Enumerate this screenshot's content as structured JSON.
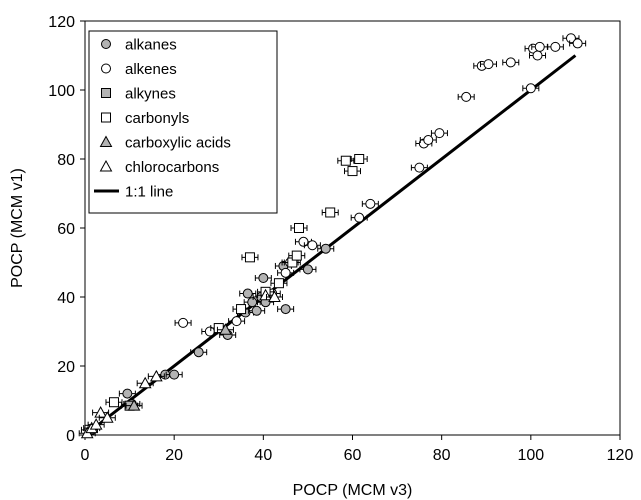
{
  "chart_data": {
    "type": "scatter",
    "xlabel": "POCP (MCM v3)",
    "ylabel": "POCP (MCM v1)",
    "xlim": [
      0,
      120
    ],
    "ylim": [
      0,
      120
    ],
    "x_ticks": [
      "0",
      "20",
      "40",
      "60",
      "80",
      "100",
      "120"
    ],
    "y_ticks": [
      "0",
      "20",
      "40",
      "60",
      "80",
      "100",
      "120"
    ],
    "grid": false,
    "legend_position": "top-left",
    "reference_line": {
      "name": "1:1 line",
      "x": [
        0,
        110
      ],
      "y": [
        0,
        110
      ]
    },
    "series": [
      {
        "name": "alkanes",
        "marker": "circle",
        "fill": "#b3b3b3",
        "points": [
          [
            9.5,
            12
          ],
          [
            10.5,
            9
          ],
          [
            18,
            17.5
          ],
          [
            20,
            17.5
          ],
          [
            25.5,
            24
          ],
          [
            32,
            29
          ],
          [
            36,
            35.5
          ],
          [
            36.5,
            41
          ],
          [
            37.5,
            38.5
          ],
          [
            38.5,
            36
          ],
          [
            39.5,
            40
          ],
          [
            40,
            45.5
          ],
          [
            40.5,
            38.5
          ],
          [
            44.5,
            49
          ],
          [
            45,
            36.5
          ],
          [
            50,
            48
          ],
          [
            54,
            54
          ]
        ]
      },
      {
        "name": "alkenes",
        "marker": "circle",
        "fill": "#ffffff",
        "points": [
          [
            22,
            32.5
          ],
          [
            28,
            30
          ],
          [
            34,
            33
          ],
          [
            42,
            41
          ],
          [
            45,
            47
          ],
          [
            46,
            50
          ],
          [
            49,
            56
          ],
          [
            51,
            55
          ],
          [
            61.5,
            63
          ],
          [
            64,
            67
          ],
          [
            75,
            77.5
          ],
          [
            76,
            84.5
          ],
          [
            77,
            85.5
          ],
          [
            79.5,
            87.5
          ],
          [
            85.5,
            98
          ],
          [
            89,
            107
          ],
          [
            90.5,
            107.5
          ],
          [
            95.5,
            108
          ],
          [
            100,
            100.5
          ],
          [
            100.5,
            112
          ],
          [
            101.5,
            110
          ],
          [
            102,
            112.5
          ],
          [
            105.5,
            112.5
          ],
          [
            109,
            115
          ],
          [
            110.5,
            113.5
          ]
        ]
      },
      {
        "name": "alkynes",
        "marker": "square",
        "fill": "#b3b3b3",
        "points": [
          [
            10,
            8.5
          ]
        ]
      },
      {
        "name": "carbonyls",
        "marker": "square",
        "fill": "#ffffff",
        "points": [
          [
            1,
            1.5
          ],
          [
            6.5,
            9.5
          ],
          [
            30,
            31
          ],
          [
            35,
            36.5
          ],
          [
            37,
            51.5
          ],
          [
            40.5,
            41.5
          ],
          [
            43.5,
            44
          ],
          [
            46.5,
            50
          ],
          [
            47.5,
            52
          ],
          [
            48,
            60
          ],
          [
            55,
            64.5
          ],
          [
            58.5,
            79.5
          ],
          [
            60,
            76.5
          ],
          [
            61.5,
            80
          ]
        ]
      },
      {
        "name": "carboxylic acids",
        "marker": "triangle",
        "fill": "#b3b3b3",
        "points": [
          [
            11,
            8.5
          ],
          [
            31.5,
            30.5
          ]
        ]
      },
      {
        "name": "chlorocarbons",
        "marker": "triangle",
        "fill": "#ffffff",
        "points": [
          [
            0.5,
            0.5
          ],
          [
            1.5,
            2
          ],
          [
            2.5,
            3
          ],
          [
            3.5,
            6.5
          ],
          [
            5,
            5
          ],
          [
            13.5,
            15
          ],
          [
            16,
            17
          ],
          [
            40.5,
            40.5
          ],
          [
            42.5,
            40
          ]
        ]
      }
    ]
  }
}
